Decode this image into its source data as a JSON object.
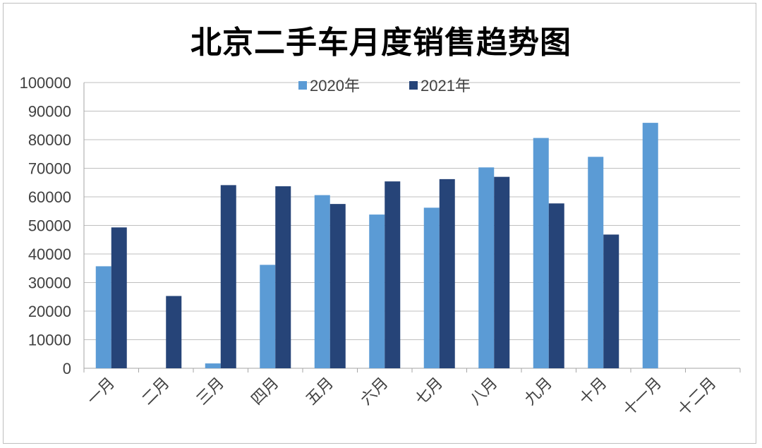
{
  "chart_data": {
    "type": "bar",
    "title": "北京二手车月度销售趋势图",
    "categories": [
      "一月",
      "二月",
      "三月",
      "四月",
      "五月",
      "六月",
      "七月",
      "八月",
      "九月",
      "十月",
      "十一月",
      "十二月"
    ],
    "series": [
      {
        "name": "2020年",
        "color": "#5b9bd5",
        "values": [
          35700,
          null,
          1700,
          36200,
          60600,
          53800,
          56200,
          70300,
          80600,
          74000,
          85900,
          null
        ]
      },
      {
        "name": "2021年",
        "color": "#264478",
        "values": [
          49300,
          25300,
          64100,
          63700,
          57500,
          65400,
          66200,
          67000,
          57700,
          46800,
          null,
          null
        ]
      }
    ],
    "ylim": [
      0,
      100000
    ],
    "yticks": [
      0,
      10000,
      20000,
      30000,
      40000,
      50000,
      60000,
      70000,
      80000,
      90000,
      100000
    ],
    "grid": true,
    "legend": "top"
  }
}
